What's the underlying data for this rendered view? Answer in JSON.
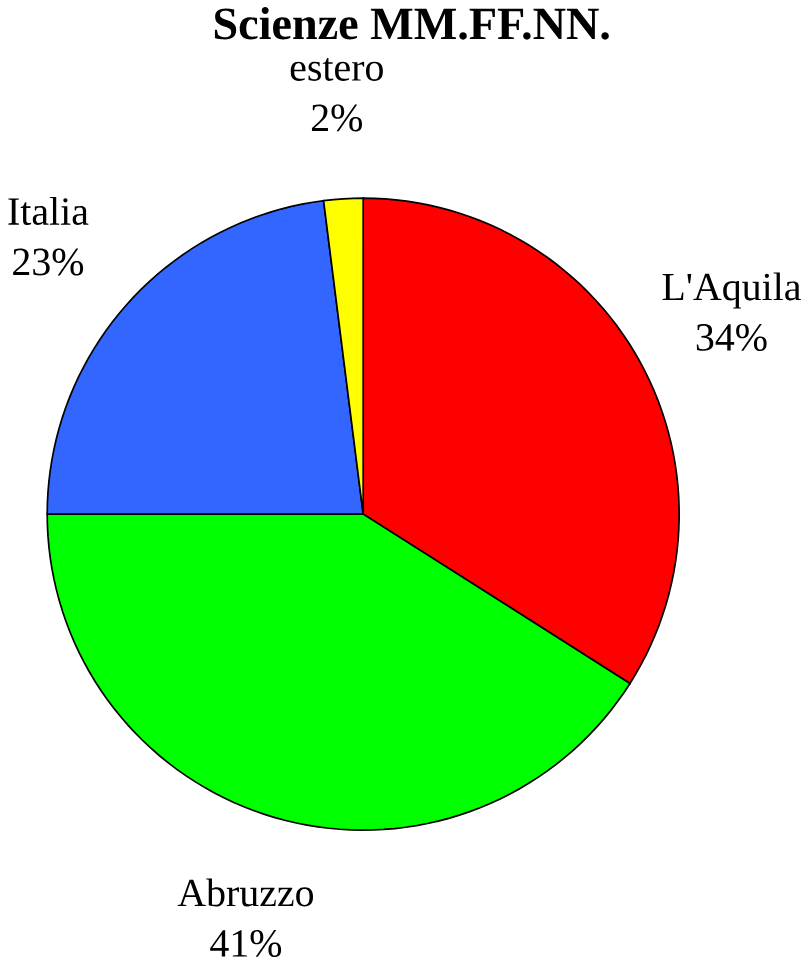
{
  "chart_data": {
    "type": "pie",
    "title": "Scienze MM.FF.NN.",
    "categories": [
      "L'Aquila",
      "Abruzzo",
      "Italia",
      "estero"
    ],
    "values": [
      34,
      41,
      23,
      2
    ],
    "value_labels": [
      "34%",
      "41%",
      "23%",
      "2%"
    ],
    "colors": [
      "#ff0000",
      "#00ff00",
      "#3366ff",
      "#ffff00"
    ]
  }
}
